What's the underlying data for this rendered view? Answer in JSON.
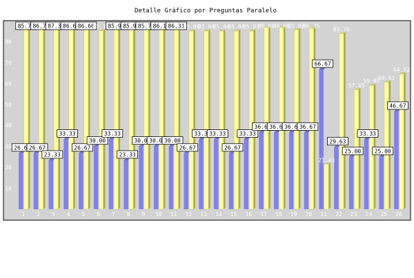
{
  "chart_data": {
    "type": "bar",
    "title": "Detalle Gráfico por Preguntas Paralelo",
    "xlabel": "",
    "ylabel": "",
    "ylim": [
      0,
      90
    ],
    "yticks": [
      10,
      20,
      30,
      40,
      50,
      60,
      70,
      80
    ],
    "grid": false,
    "legend": "none",
    "categories": [
      "1",
      "2",
      "3",
      "4",
      "5",
      "6",
      "7",
      "8",
      "9",
      "10",
      "11",
      "12",
      "13",
      "14",
      "15",
      "16",
      "17",
      "18",
      "19",
      "20",
      "21",
      "22",
      "23",
      "24",
      "25",
      "26"
    ],
    "series": [
      {
        "color": "#8080f0",
        "values": [
          26.67,
          26.67,
          23.33,
          33.33,
          26.67,
          30.0,
          33.33,
          23.33,
          30.0,
          30.0,
          30.0,
          26.67,
          33.33,
          33.33,
          26.67,
          33.33,
          36.67,
          36.67,
          36.67,
          36.67,
          66.67,
          29.63,
          25.0,
          33.33,
          25.0,
          46.67
        ],
        "labels": [
          "26.67",
          "26.67",
          "23.33",
          "33.33",
          "26.67",
          "30.00",
          "33.33",
          "23.33",
          "30.00",
          "30.00",
          "30.00",
          "26.67",
          "33.33",
          "33.33",
          "26.67",
          "33.33",
          "36.67",
          "36.67",
          "36.67",
          "36.67",
          "66.67",
          "29.63",
          "25.00",
          "33.33",
          "25.00",
          "46.67"
        ]
      },
      {
        "color": "#ffff99",
        "values": [
          85.71,
          86.7,
          87.36,
          86.6,
          86.6,
          85.18,
          85.97,
          85.97,
          85.76,
          86.11,
          86.31,
          85.04,
          85.04,
          85.04,
          85.04,
          85.03,
          86.6,
          86.6,
          85.6,
          86.35,
          21.43,
          83.76,
          57.05,
          59.05,
          60.63,
          64.52
        ],
        "labels": [
          "85.71",
          "86.70",
          "87.36",
          "86.60",
          "86.60",
          "85.18",
          "85.97",
          "85.97",
          "85.76",
          "86.11",
          "86.31",
          "85.04",
          "85.04",
          "85.04",
          "85.04",
          "85.03",
          "86.60",
          "86.60",
          "85.60",
          "86.35",
          "21.43",
          "83.76",
          "57.05",
          "59.05",
          "60.63",
          "64.52"
        ]
      }
    ]
  }
}
